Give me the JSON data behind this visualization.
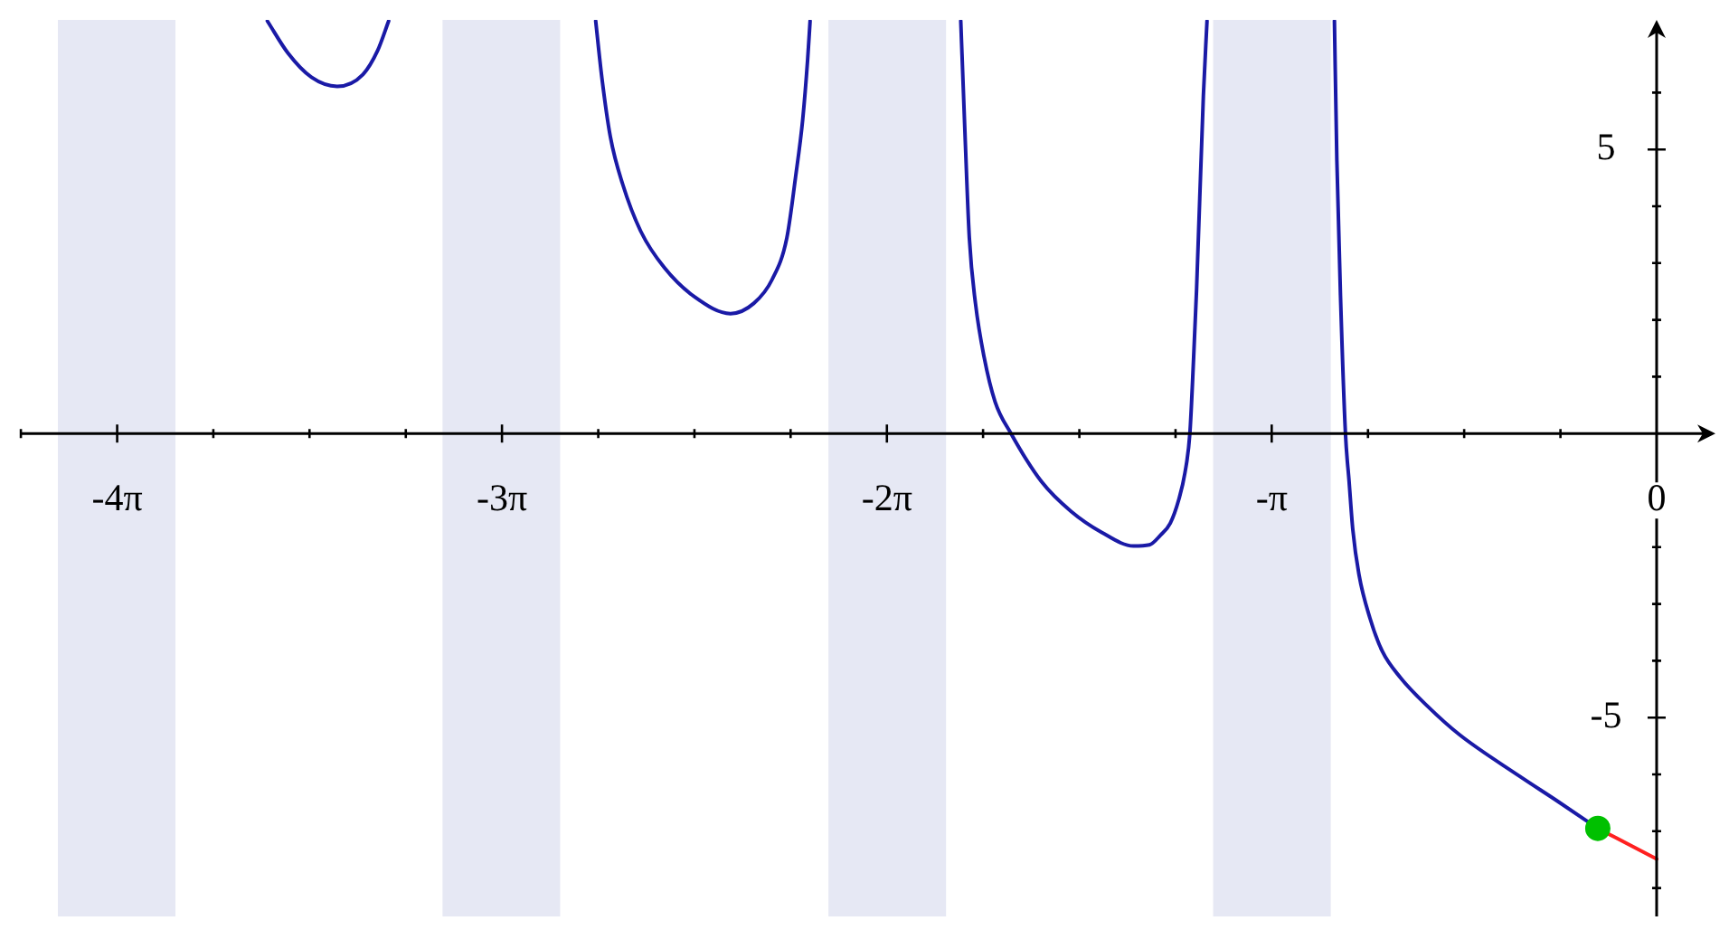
{
  "chart_data": {
    "type": "line",
    "series": [
      {
        "type": "line",
        "color": "#1a1aa6",
        "x": [
          -11.34,
          -11.17,
          -10.98,
          -10.77,
          -10.56,
          -10.44,
          -10.35,
          -9.5,
          -8.66,
          -8.61,
          -8.54,
          -8.44,
          -8.29,
          -8.1,
          -7.85,
          -7.56,
          -7.37,
          -7.22,
          -7.1,
          -7.03,
          -6.97,
          -6.93,
          -6.91,
          -6.3,
          -5.68,
          -5.65,
          -5.61,
          -5.56,
          -5.49,
          -5.4,
          -5.27,
          -5.02,
          -4.78,
          -4.53,
          -4.27,
          -4.14,
          -4.05,
          -3.97,
          -3.9,
          -3.85,
          -3.81,
          -3.78,
          -3.755,
          -3.7,
          -3.67,
          -3.1,
          -2.63,
          -2.61,
          -2.58,
          -2.54,
          -2.51,
          -2.48,
          -2.43,
          -2.34,
          -2.24,
          -2.09,
          -1.87,
          -1.61,
          -1.12,
          -0.81,
          -0.48
        ],
        "values": [
          7.26,
          6.69,
          6.27,
          6.11,
          6.32,
          6.74,
          7.26,
          null,
          7.26,
          6.27,
          5.22,
          4.39,
          3.55,
          2.92,
          2.4,
          2.11,
          2.29,
          2.71,
          3.44,
          4.49,
          5.53,
          6.58,
          7.26,
          null,
          7.26,
          5.53,
          3.44,
          2.29,
          1.35,
          0.56,
          0,
          -0.85,
          -1.37,
          -1.74,
          -1.98,
          -1.96,
          -1.79,
          -1.58,
          -1.16,
          -0.69,
          0,
          1.3,
          2.55,
          5.93,
          7.26,
          null,
          7.26,
          4.8,
          2.39,
          0,
          -0.85,
          -1.69,
          -2.48,
          -3.25,
          -3.83,
          -4.3,
          -4.8,
          -5.3,
          -6.03,
          -6.47,
          -6.95
        ]
      },
      {
        "type": "line",
        "color": "#ff2020",
        "x": [
          -0.48,
          0
        ],
        "values": [
          -6.95,
          -7.49
        ]
      },
      {
        "type": "scatter",
        "color": "#00c000",
        "marker": "circle",
        "x": [
          -0.48
        ],
        "values": [
          -6.95
        ]
      }
    ],
    "xlim": [
      -13.36,
      0.48
    ],
    "ylim": [
      -8.5,
      7.28
    ],
    "xticks": [
      {
        "value": -13.352,
        "label": null
      },
      {
        "value": -12.566,
        "label": "-4π"
      },
      {
        "value": -11.781,
        "label": null
      },
      {
        "value": -10.996,
        "label": null
      },
      {
        "value": -10.21,
        "label": null
      },
      {
        "value": -9.425,
        "label": "-3π"
      },
      {
        "value": -8.639,
        "label": null
      },
      {
        "value": -7.854,
        "label": null
      },
      {
        "value": -7.069,
        "label": null
      },
      {
        "value": -6.283,
        "label": "-2π"
      },
      {
        "value": -5.498,
        "label": null
      },
      {
        "value": -4.712,
        "label": null
      },
      {
        "value": -3.927,
        "label": null
      },
      {
        "value": -3.142,
        "label": "-π"
      },
      {
        "value": -2.356,
        "label": null
      },
      {
        "value": -1.571,
        "label": null
      },
      {
        "value": -0.785,
        "label": null
      },
      0
    ],
    "yticks": [
      {
        "value": -8,
        "label": null
      },
      {
        "value": -7,
        "label": null
      },
      {
        "value": -6,
        "label": null
      },
      -5,
      {
        "value": -4,
        "label": null
      },
      {
        "value": -3,
        "label": null
      },
      {
        "value": -2,
        "label": null
      },
      {
        "value": -1,
        "label": null
      },
      {
        "value": 1,
        "label": null
      },
      {
        "value": 2,
        "label": null
      },
      {
        "value": 3,
        "label": null
      },
      {
        "value": 4,
        "label": null
      },
      5,
      {
        "value": 6,
        "label": null
      }
    ],
    "bands": [
      {
        "axis": "x",
        "from": -13.05,
        "to": -12.09,
        "color": "#e6e8f4"
      },
      {
        "axis": "x",
        "from": -9.91,
        "to": -8.95,
        "color": "#e6e8f4"
      },
      {
        "axis": "x",
        "from": -6.76,
        "to": -5.8,
        "color": "#e6e8f4"
      },
      {
        "axis": "x",
        "from": -3.62,
        "to": -2.66,
        "color": "#e6e8f4"
      }
    ]
  }
}
